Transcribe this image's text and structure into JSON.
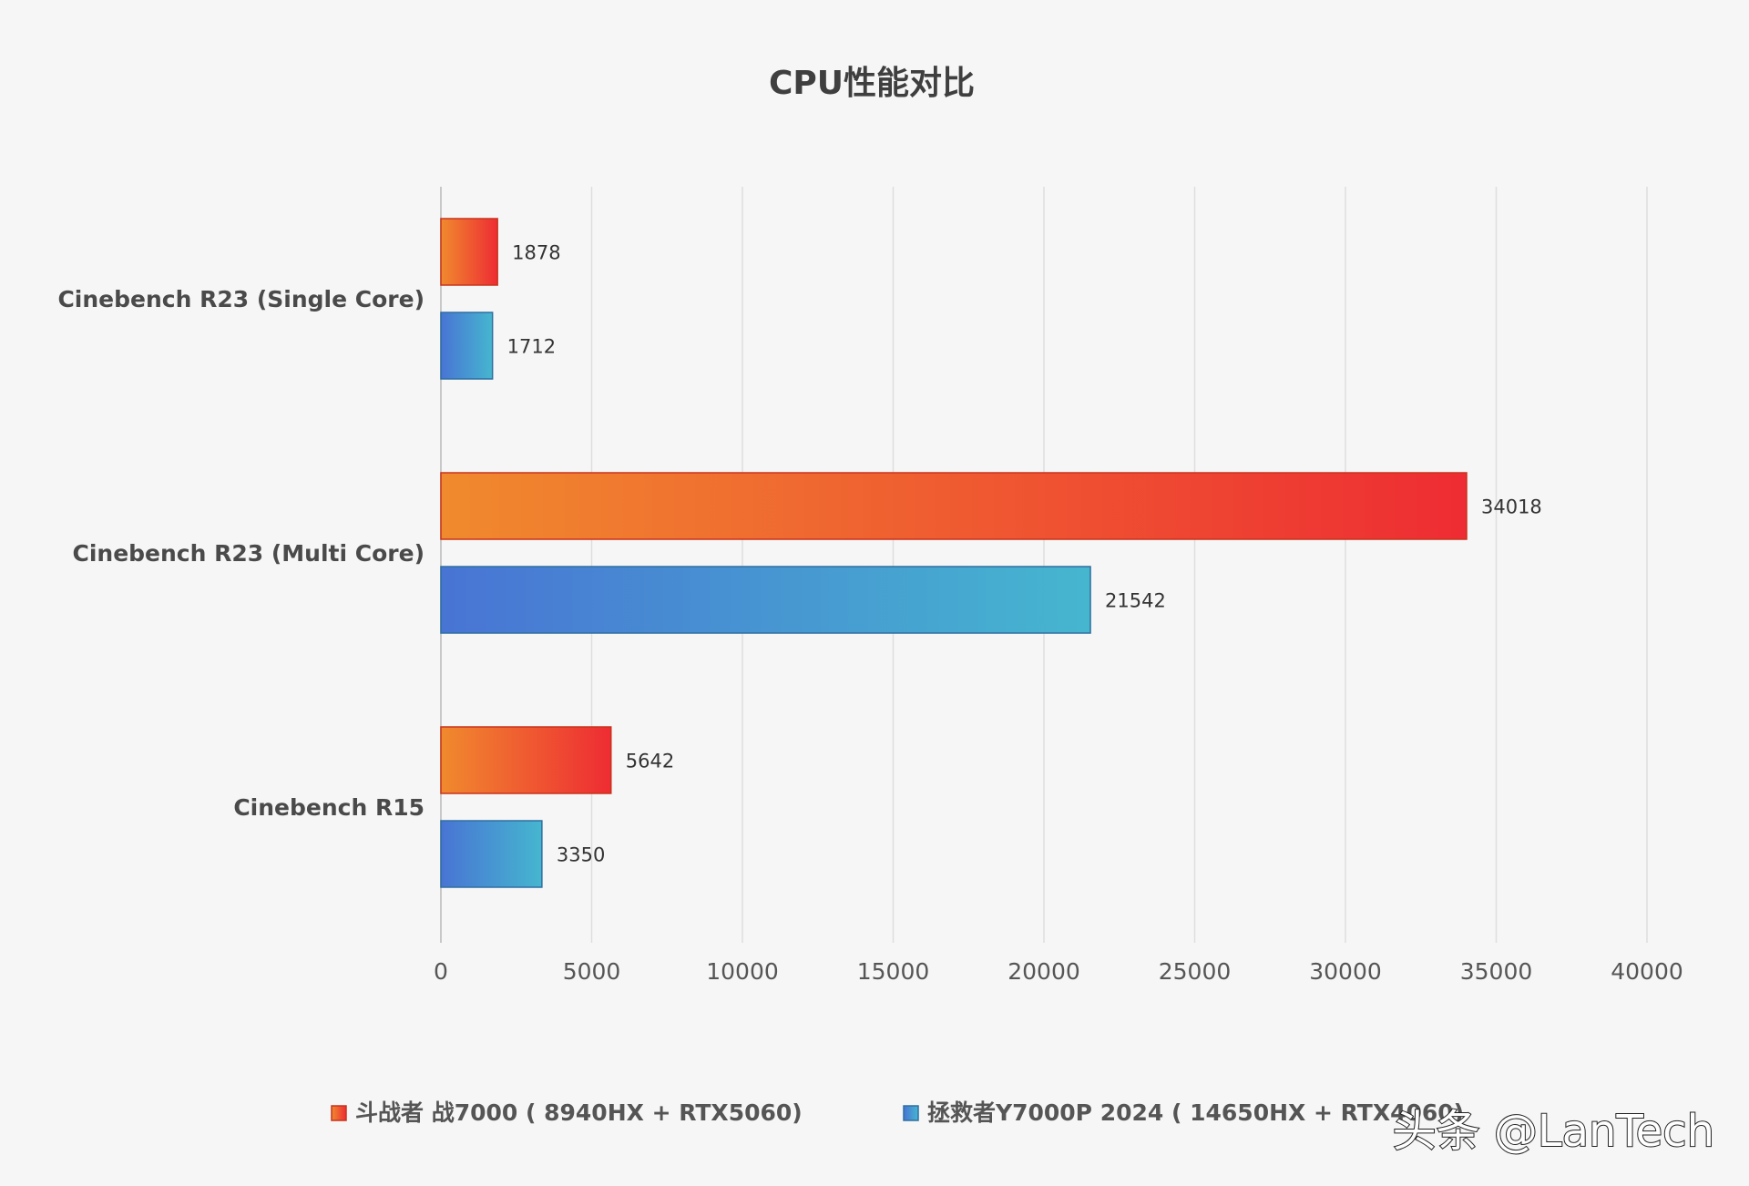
{
  "chart_data": {
    "type": "bar",
    "orientation": "horizontal",
    "title": "CPU性能对比",
    "categories": [
      "Cinebench R23 (Single Core)",
      "Cinebench R23 (Multi Core)",
      "Cinebench R15"
    ],
    "series": [
      {
        "name": "斗战者 战7000 ( 8940HX + RTX5060)",
        "values": [
          1878,
          34018,
          5642
        ],
        "gradient": [
          "#f08a2e",
          "#ee2c33"
        ],
        "stroke": "#c8321c"
      },
      {
        "name": "拯救者Y7000P 2024 ( 14650HX + RTX4060)",
        "values": [
          1712,
          21542,
          3350
        ],
        "gradient": [
          "#4874d4",
          "#46b6cf"
        ],
        "stroke": "#2f6fa0"
      }
    ],
    "xlim": [
      0,
      40000
    ],
    "xticks": [
      0,
      5000,
      10000,
      15000,
      20000,
      25000,
      30000,
      35000,
      40000
    ],
    "grid": true,
    "legend": "bottom",
    "data_labels": true
  },
  "watermark": "头条 @LanTech"
}
